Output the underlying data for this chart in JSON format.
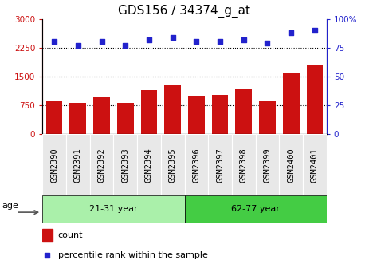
{
  "title": "GDS156 / 34374_g_at",
  "samples": [
    "GSM2390",
    "GSM2391",
    "GSM2392",
    "GSM2393",
    "GSM2394",
    "GSM2395",
    "GSM2396",
    "GSM2397",
    "GSM2398",
    "GSM2399",
    "GSM2400",
    "GSM2401"
  ],
  "counts": [
    880,
    820,
    960,
    800,
    1150,
    1290,
    1000,
    1010,
    1180,
    850,
    1570,
    1790
  ],
  "percentiles": [
    80,
    77,
    80,
    77,
    82,
    84,
    80,
    80,
    82,
    79,
    88,
    90
  ],
  "bar_color": "#cc1111",
  "dot_color": "#2222cc",
  "ylim_left": [
    0,
    3000
  ],
  "ylim_right": [
    0,
    100
  ],
  "yticks_left": [
    0,
    750,
    1500,
    2250,
    3000
  ],
  "yticks_right": [
    0,
    25,
    50,
    75,
    100
  ],
  "ytick_labels_left": [
    "0",
    "750",
    "1500",
    "2250",
    "3000"
  ],
  "ytick_labels_right": [
    "0",
    "25",
    "50",
    "75",
    "100%"
  ],
  "groups": [
    {
      "label": "21-31 year",
      "start": 0,
      "end": 6,
      "color": "#aaf0aa"
    },
    {
      "label": "62-77 year",
      "start": 6,
      "end": 12,
      "color": "#44cc44"
    }
  ],
  "age_label": "age",
  "legend_count_label": "count",
  "legend_percentile_label": "percentile rank within the sample",
  "title_fontsize": 11,
  "tick_fontsize": 7.5,
  "label_fontsize": 8,
  "grid_color": "black",
  "bg_color": "#e8e8e8"
}
